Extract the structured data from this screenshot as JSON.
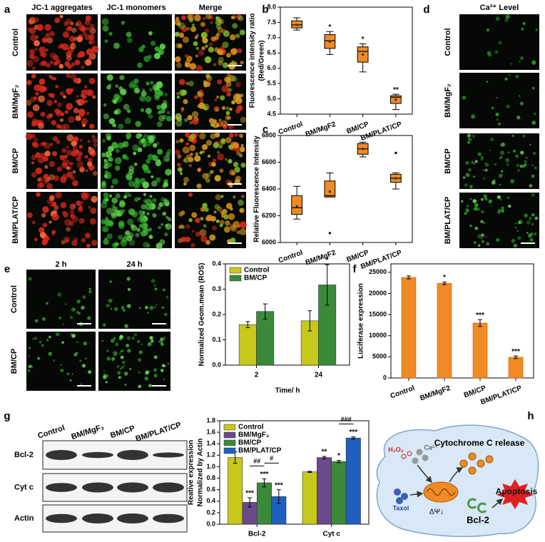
{
  "panel_labels": [
    "a",
    "b",
    "c",
    "d",
    "e",
    "f",
    "g",
    "h"
  ],
  "panel_a": {
    "columns": [
      "JC-1 aggregates",
      "JC-1 monomers",
      "Merge"
    ],
    "rows": [
      "Control",
      "BM/MgF₂",
      "BM/CP",
      "BM/PLAT/CP"
    ]
  },
  "panel_d": {
    "title": "Ca²⁺ Level",
    "rows": [
      "Control",
      "BM/MgF₂",
      "BM/CP",
      "BM/PLAT/CP"
    ]
  },
  "panel_e": {
    "columns": [
      "2 h",
      "24 h"
    ],
    "rows": [
      "Control",
      "BM/CP"
    ]
  },
  "panel_g_blot": {
    "columns": [
      "Control",
      "BM/MgF₂",
      "BM/CP",
      "BM/PLAT/CP"
    ],
    "rows": [
      "Bcl-2",
      "Cyt c",
      "Actin"
    ]
  },
  "panel_h": {
    "release": "Cytochrome C release",
    "apoptosis": "Apoptosis",
    "bcl2": "Bcl-2",
    "taxol": "Taxol",
    "potential": "ΔΨ↓",
    "h2o2": "H₂O₂",
    "calcium": "Ca²⁺"
  },
  "chart_data": [
    {
      "type": "box",
      "ylabel": [
        "Fluorescence intensity ratio",
        "(Red/Green)"
      ],
      "categories": [
        "Control",
        "BM/MgF2",
        "BM/CP",
        "BM/PLAT/CP"
      ],
      "color": "#f08a24",
      "boxes": [
        {
          "min": 7.25,
          "q1": 7.32,
          "median": 7.42,
          "q3": 7.55,
          "max": 7.65,
          "mean": 7.42,
          "outliers": []
        },
        {
          "min": 6.45,
          "q1": 6.65,
          "median": 6.9,
          "q3": 7.1,
          "max": 7.2,
          "mean": 6.87,
          "outliers": []
        },
        {
          "min": 5.88,
          "q1": 6.2,
          "median": 6.55,
          "q3": 6.7,
          "max": 6.8,
          "mean": 6.45,
          "outliers": []
        },
        {
          "min": 4.65,
          "q1": 4.85,
          "median": 5.05,
          "q3": 5.1,
          "max": 5.15,
          "mean": 4.97,
          "outliers": []
        }
      ],
      "significance": [
        null,
        "*",
        "*",
        "**"
      ],
      "ylim": [
        4.5,
        8.0
      ],
      "yticks": [
        4.5,
        {
          "value": 5,
          "label": "5.0"
        },
        5.5,
        {
          "value": 6,
          "label": "6.0"
        },
        6.5,
        {
          "value": 7,
          "label": "7.0"
        },
        7.5,
        {
          "value": 8,
          "label": "8.0"
        }
      ]
    },
    {
      "type": "box",
      "ylabel": [
        "Relative Fluorescence Intensity"
      ],
      "categories": [
        "Control",
        "BM/MgF2",
        "BM/CP",
        "BM/PLAT/CP"
      ],
      "color": "#f08a24",
      "boxes": [
        {
          "min": 6175,
          "q1": 6210,
          "median": 6260,
          "q3": 6350,
          "max": 6420,
          "mean": 6270,
          "outliers": []
        },
        {
          "min": 6340,
          "q1": 6340,
          "median": 6350,
          "q3": 6460,
          "max": 6520,
          "mean": 6380,
          "outliers": [
            6070
          ]
        },
        {
          "min": 6640,
          "q1": 6660,
          "median": 6700,
          "q3": 6740,
          "max": 6750,
          "mean": 6700,
          "outliers": []
        },
        {
          "min": 6400,
          "q1": 6450,
          "median": 6480,
          "q3": 6510,
          "max": 6520,
          "mean": 6480,
          "outliers": [
            6670
          ]
        }
      ],
      "ylim": [
        6000,
        6800
      ],
      "yticks": [
        6000,
        6200,
        6400,
        6600,
        6800
      ]
    },
    {
      "type": "bar",
      "ylabel": [
        "Normalized Geom.mean (ROS)"
      ],
      "xlabel": "Time/ h",
      "categories": [
        "2",
        "24"
      ],
      "series": [
        {
          "name": "Control",
          "color": "#c8c81a",
          "values": [
            0.16,
            0.175
          ],
          "errors": [
            0.012,
            0.04
          ],
          "significance": [
            null,
            null
          ]
        },
        {
          "name": "BM/CP",
          "color": "#3a8a3a",
          "values": [
            0.212,
            0.317
          ],
          "errors": [
            0.03,
            0.08
          ],
          "significance": [
            null,
            "*"
          ]
        }
      ],
      "ylim": [
        0,
        0.4
      ],
      "yticks": [
        {
          "value": 0,
          "label": "0.0"
        },
        0.1,
        0.2,
        0.3,
        0.4
      ],
      "legend": "upper-left"
    },
    {
      "type": "bar",
      "ylabel": [
        "Luciferase expression"
      ],
      "categories": [
        "Control",
        "BM/MgF2",
        "BM/CP",
        "BM/PLAT/CP"
      ],
      "color": "#f08a24",
      "values": [
        23800,
        22400,
        13000,
        4900
      ],
      "errors": [
        350,
        300,
        800,
        300
      ],
      "significance": [
        null,
        "*",
        "***",
        "***"
      ],
      "ylim": [
        0,
        27000
      ],
      "yticks": [
        0,
        5000,
        10000,
        15000,
        20000,
        25000
      ]
    },
    {
      "type": "bar",
      "ylabel": [
        "Reative expression",
        "Normalized by Actin"
      ],
      "categories": [
        "Bcl-2",
        "Cyt c"
      ],
      "series": [
        {
          "name": "Control",
          "color": "#c8c81a",
          "values": [
            1.16,
            0.91
          ],
          "errors": [
            0.1,
            0.01
          ],
          "significance": [
            null,
            null
          ]
        },
        {
          "name": "BM/MgF₂",
          "color": "#6a4a8a",
          "values": [
            0.38,
            1.16
          ],
          "errors": [
            0.08,
            0.02
          ],
          "significance": [
            "***",
            "**"
          ]
        },
        {
          "name": "BM/CP",
          "color": "#3a8a3a",
          "values": [
            0.72,
            1.09
          ],
          "errors": [
            0.07,
            0.02
          ],
          "significance": [
            "***",
            "*"
          ]
        },
        {
          "name": "BM/PLAT/CP",
          "color": "#1f5fbf",
          "values": [
            0.48,
            1.5
          ],
          "errors": [
            0.12,
            0.02
          ],
          "significance": [
            "***",
            "***"
          ]
        }
      ],
      "brackets": [
        "##",
        "#",
        "###"
      ],
      "ylim": [
        0,
        1.8
      ],
      "yticks": [
        {
          "value": 0,
          "label": "0.0"
        },
        0.2,
        0.4,
        0.6,
        0.8,
        {
          "value": 1,
          "label": "1.0"
        },
        1.2,
        1.4,
        1.6,
        1.8
      ],
      "legend": "upper-left"
    }
  ]
}
